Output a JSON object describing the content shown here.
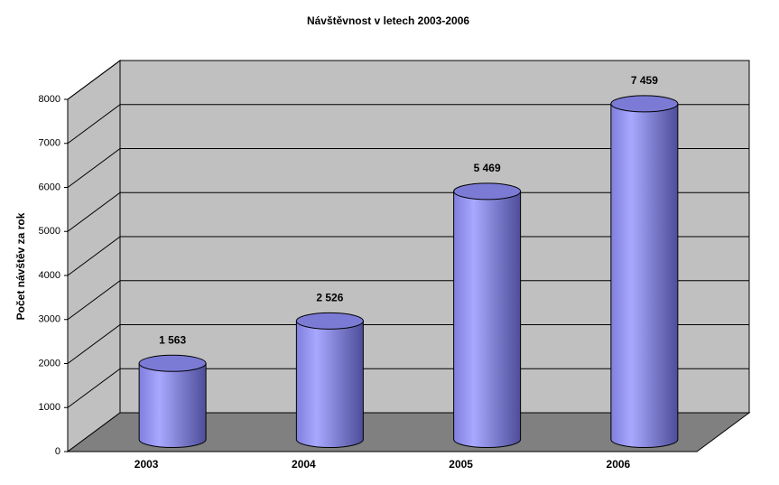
{
  "chart_data": {
    "type": "bar3d",
    "title": "Návštěvnost v letech 2003-2006",
    "y_label": "Počet návštěv za rok",
    "categories": [
      "2003",
      "2004",
      "2005",
      "2006"
    ],
    "values": [
      1563,
      2526,
      5469,
      7459
    ],
    "value_labels": [
      "1 563",
      "2 526",
      "5 469",
      "7 459"
    ],
    "color": "#9999ff",
    "ylim": [
      0,
      8000
    ],
    "yticks": [
      0,
      1000,
      2000,
      3000,
      4000,
      5000,
      6000,
      7000,
      8000
    ],
    "grid": true
  }
}
